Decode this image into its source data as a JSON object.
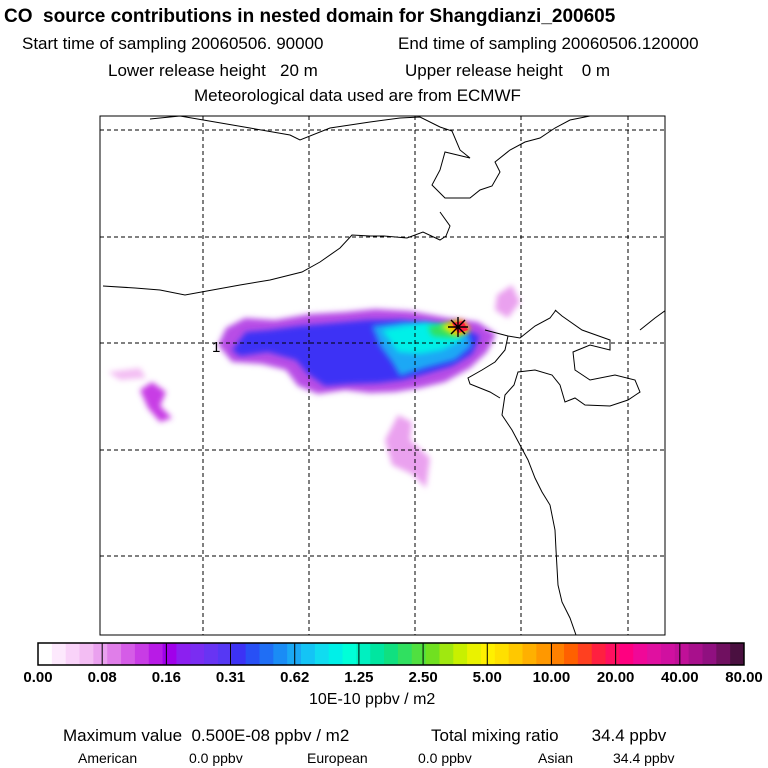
{
  "header": {
    "title": "CO  source contributions in nested domain for Shangdianzi_200605",
    "start_label": "Start time of sampling 20060506. 90000",
    "end_label": "End time of sampling 20060506.120000",
    "lower_label": "Lower release height   20 m",
    "upper_label": "Upper release height    0 m",
    "met_label": "Meteorological data used are from ECMWF"
  },
  "chart_data": {
    "type": "heatmap",
    "grid": true,
    "contour_label": "1",
    "colorbar": {
      "units": "10E-10 ppbv / m2",
      "ticks": [
        "0.00",
        "0.08",
        "0.16",
        "0.31",
        "0.62",
        "1.25",
        "2.50",
        "5.00",
        "10.00",
        "20.00",
        "40.00",
        "80.00"
      ],
      "colors": [
        "#ffffff",
        "#fde9fd",
        "#f9d3f9",
        "#f3bdf3",
        "#eaa1ef",
        "#e07ee9",
        "#d55ce7",
        "#c83ce5",
        "#b81be6",
        "#a000ea",
        "#8c1ff0",
        "#7a2df2",
        "#6834f3",
        "#5638f4",
        "#3c32f5",
        "#2850f5",
        "#1f6ef5",
        "#1a8cf5",
        "#1aa8f5",
        "#14c4f5",
        "#10dcf0",
        "#00f0e8",
        "#00ffd8",
        "#00f0c0",
        "#00e6a0",
        "#10e080",
        "#30e060",
        "#50e040",
        "#70e020",
        "#a0e810",
        "#c8f000",
        "#eaf200",
        "#fff000",
        "#ffe000",
        "#ffc800",
        "#ffb000",
        "#ff9800",
        "#ff8000",
        "#ff6000",
        "#ff4020",
        "#ff2040",
        "#ff1060",
        "#ff0080",
        "#f00898",
        "#e010a0",
        "#d010a0",
        "#c01098",
        "#a8108c",
        "#901080",
        "#701060",
        "#4a1040"
      ]
    },
    "source_marker": "Shangdianzi"
  },
  "footer": {
    "max_label": "Maximum value  0.500E-08 ppbv / m2",
    "total_label": "Total mixing ratio       34.4 ppbv",
    "american_label": "American",
    "american_value": "0.0 ppbv",
    "european_label": "European",
    "european_value": "0.0 ppbv",
    "asian_label": "Asian",
    "asian_value": "34.4 ppbv"
  }
}
